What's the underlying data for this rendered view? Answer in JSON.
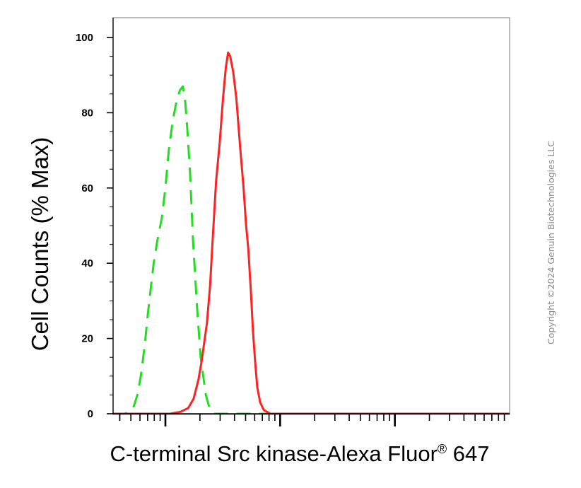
{
  "chart_data": {
    "type": "line",
    "ylabel": "Cell Counts (% Max)",
    "xlabel_main": "C-terminal Src kinase-Alexa Fluor",
    "xlabel_registered": "®",
    "xlabel_suffix": " 647",
    "x_scale": "log",
    "x_major_ticks": [
      10,
      100,
      1000
    ],
    "xlim": [
      3.5,
      10000
    ],
    "ylim": [
      0,
      100
    ],
    "y_ticks": [
      "0",
      "20",
      "40",
      "60",
      "80",
      "100"
    ],
    "series": [
      {
        "color": "#22dd22",
        "dash": "dashed",
        "points": [
          [
            3.5,
            0
          ],
          [
            4.4,
            0
          ],
          [
            4.9,
            0.5
          ],
          [
            5.3,
            2
          ],
          [
            5.7,
            5
          ],
          [
            6.1,
            10
          ],
          [
            6.6,
            18
          ],
          [
            7.0,
            26
          ],
          [
            7.5,
            34
          ],
          [
            7.9,
            40
          ],
          [
            8.5,
            46
          ],
          [
            9.3,
            52
          ],
          [
            10.0,
            60
          ],
          [
            10.7,
            70
          ],
          [
            11.6,
            78
          ],
          [
            12.5,
            83
          ],
          [
            13.4,
            86
          ],
          [
            14.2,
            87
          ],
          [
            14.8,
            84
          ],
          [
            15.5,
            76
          ],
          [
            16.4,
            64
          ],
          [
            17.4,
            46
          ],
          [
            18.9,
            28
          ],
          [
            20.3,
            15
          ],
          [
            22.5,
            5
          ],
          [
            24.5,
            1
          ],
          [
            27,
            0
          ],
          [
            32,
            0
          ],
          [
            40,
            0
          ],
          [
            10000,
            0
          ]
        ]
      },
      {
        "color": "#ff2222",
        "dash": "solid",
        "points": [
          [
            3.5,
            0
          ],
          [
            11,
            0
          ],
          [
            13.5,
            0.5
          ],
          [
            15.8,
            1.5
          ],
          [
            17.6,
            4
          ],
          [
            19.4,
            9
          ],
          [
            20.7,
            14
          ],
          [
            21.8,
            19
          ],
          [
            23.0,
            24
          ],
          [
            24.5,
            34
          ],
          [
            26.0,
            48
          ],
          [
            27.7,
            62
          ],
          [
            29.7,
            72
          ],
          [
            31.8,
            84
          ],
          [
            33.6,
            92
          ],
          [
            35.2,
            96
          ],
          [
            36.7,
            95
          ],
          [
            38.9,
            91
          ],
          [
            41.5,
            84
          ],
          [
            44.8,
            71
          ],
          [
            48.0,
            60
          ],
          [
            50.5,
            50
          ],
          [
            52.7,
            44
          ],
          [
            55.5,
            33
          ],
          [
            58.0,
            22
          ],
          [
            60.5,
            14
          ],
          [
            63.2,
            7
          ],
          [
            67,
            3
          ],
          [
            72,
            1
          ],
          [
            82,
            0
          ],
          [
            10000,
            0
          ]
        ]
      }
    ]
  },
  "copyright": "Copyright ©2024 Genuin Biotechnologies LLC"
}
